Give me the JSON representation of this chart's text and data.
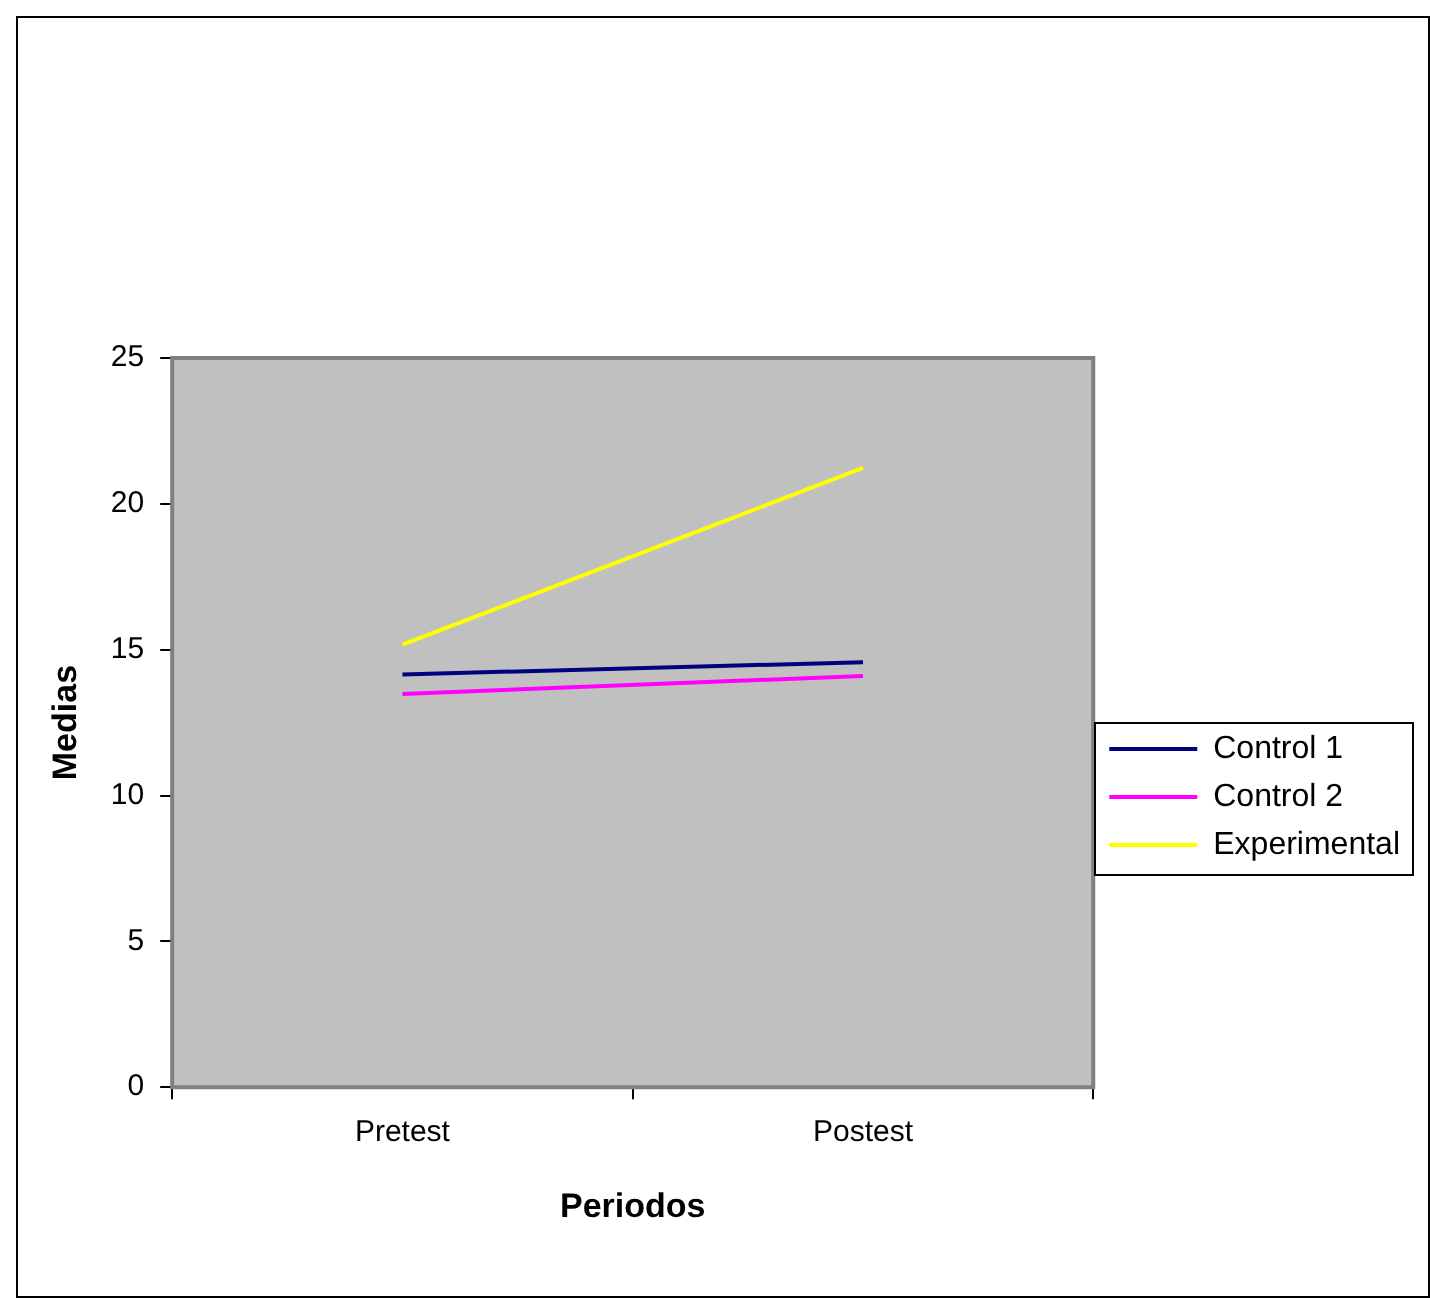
{
  "chart_data": {
    "type": "line",
    "xlabel": "Periodos",
    "ylabel": "Medias",
    "categories": [
      "Pretest",
      "Postest"
    ],
    "series": [
      {
        "name": "Control 1",
        "color": "#000080",
        "values": [
          14.15,
          14.57
        ]
      },
      {
        "name": "Control 2",
        "color": "#ff00ff",
        "values": [
          13.48,
          14.1
        ]
      },
      {
        "name": "Experimental",
        "color": "#ffff00",
        "values": [
          15.17,
          21.23
        ]
      }
    ],
    "ylim": [
      0,
      25
    ],
    "yticks": [
      0,
      5,
      10,
      15,
      20,
      25
    ],
    "legend": "right",
    "marker": "none",
    "line_style": "solid"
  }
}
